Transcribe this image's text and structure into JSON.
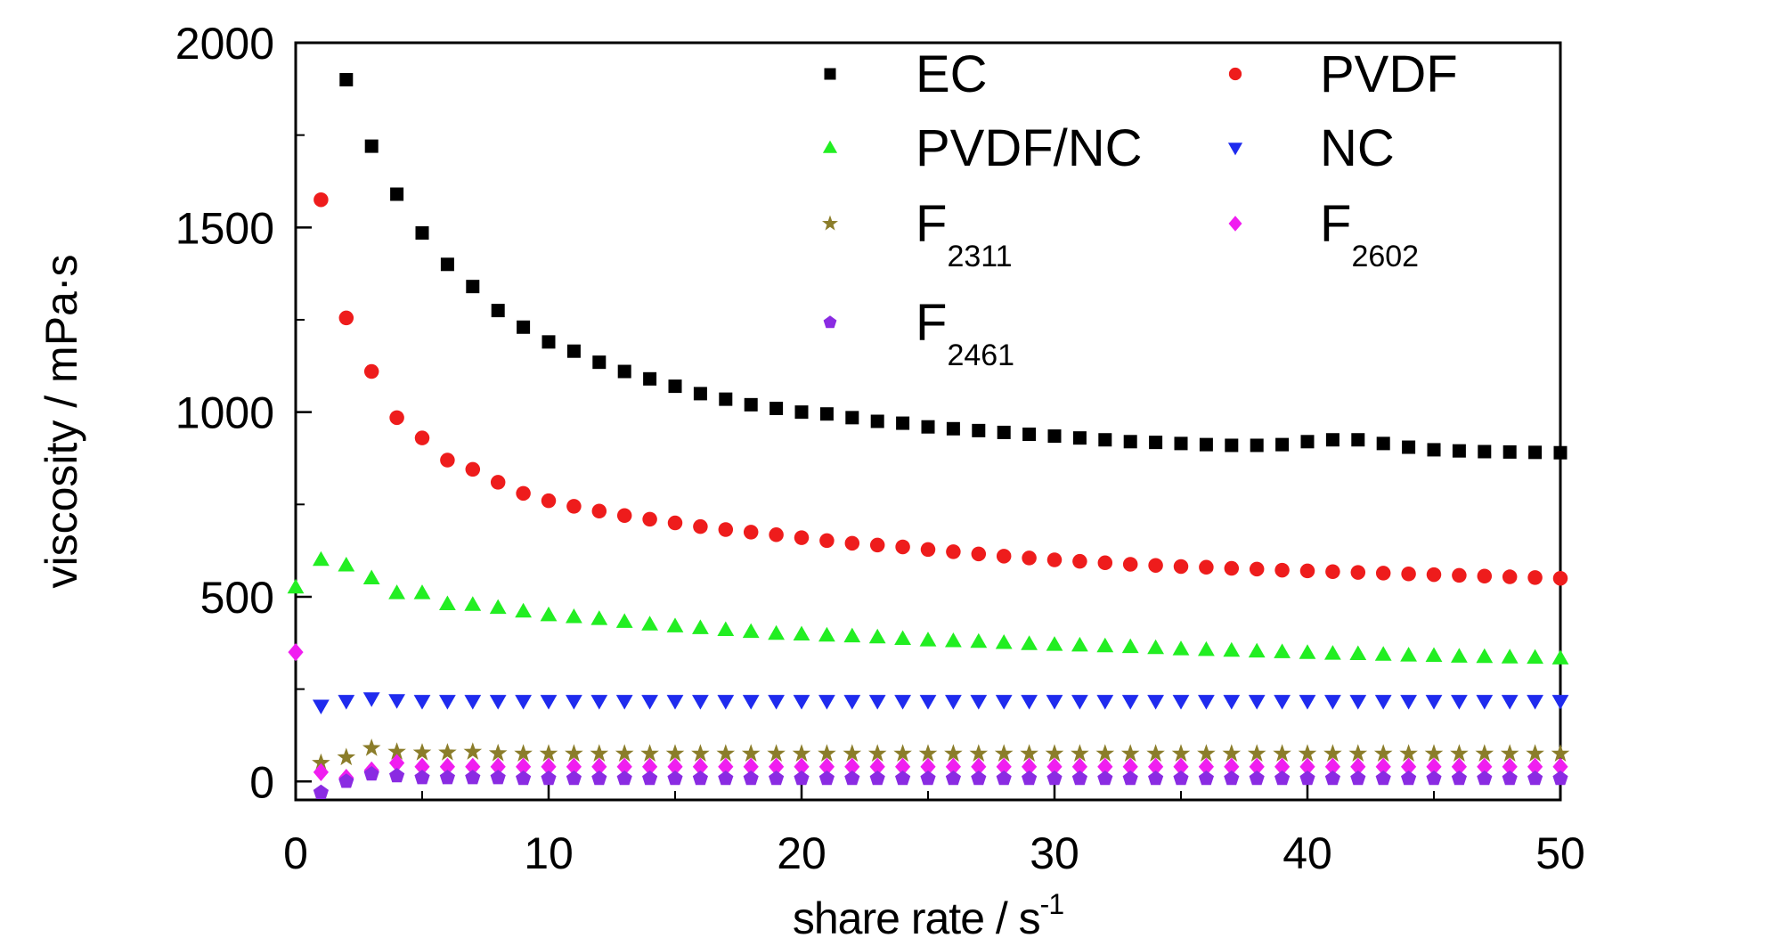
{
  "chart_data": {
    "type": "scatter",
    "title": "",
    "xlabel": "share rate / s",
    "xlabel_sup": "-1",
    "ylabel": "viscosity / mPa·s",
    "xlim": [
      0,
      50
    ],
    "ylim": [
      -50,
      2000
    ],
    "x_ticks": [
      0,
      10,
      20,
      30,
      40,
      50
    ],
    "y_ticks": [
      0,
      500,
      1000,
      1500,
      2000
    ],
    "x_tick_labels": [
      "0",
      "10",
      "20",
      "30",
      "40",
      "50"
    ],
    "y_tick_labels": [
      "0",
      "500",
      "1000",
      "1500",
      "2000"
    ],
    "grid": false,
    "legend_position": "top-right",
    "x": [
      0,
      1,
      2,
      3,
      4,
      5,
      6,
      7,
      8,
      9,
      10,
      11,
      12,
      13,
      14,
      15,
      16,
      17,
      18,
      19,
      20,
      21,
      22,
      23,
      24,
      25,
      26,
      27,
      28,
      29,
      30,
      31,
      32,
      33,
      34,
      35,
      36,
      37,
      38,
      39,
      40,
      41,
      42,
      43,
      44,
      45,
      46,
      47,
      48,
      49,
      50
    ],
    "series": [
      {
        "name": "EC",
        "sub": "",
        "marker": "square",
        "color": "#000000",
        "values": [
          null,
          null,
          1900,
          1720,
          1590,
          1485,
          1400,
          1340,
          1275,
          1230,
          1190,
          1165,
          1135,
          1110,
          1090,
          1070,
          1050,
          1035,
          1020,
          1010,
          1000,
          995,
          985,
          975,
          970,
          960,
          955,
          950,
          945,
          940,
          935,
          930,
          925,
          920,
          918,
          915,
          912,
          910,
          910,
          912,
          920,
          925,
          925,
          915,
          905,
          898,
          895,
          893,
          892,
          891,
          890
        ]
      },
      {
        "name": "PVDF",
        "sub": "",
        "marker": "circle",
        "color": "#ee1c1c",
        "values": [
          null,
          1575,
          1255,
          1110,
          985,
          930,
          870,
          845,
          810,
          780,
          760,
          745,
          732,
          720,
          710,
          700,
          690,
          682,
          675,
          668,
          660,
          652,
          645,
          640,
          635,
          628,
          622,
          616,
          610,
          605,
          600,
          596,
          592,
          588,
          585,
          582,
          580,
          577,
          575,
          572,
          570,
          568,
          566,
          564,
          562,
          560,
          558,
          556,
          554,
          552,
          550
        ]
      },
      {
        "name": "PVDF/NC",
        "sub": "",
        "marker": "triangle-up",
        "color": "#22ee22",
        "values": [
          525,
          600,
          585,
          550,
          510,
          510,
          480,
          478,
          470,
          460,
          450,
          445,
          440,
          432,
          425,
          420,
          415,
          410,
          405,
          400,
          398,
          395,
          393,
          390,
          386,
          382,
          380,
          378,
          375,
          372,
          370,
          368,
          366,
          364,
          361,
          358,
          356,
          354,
          352,
          350,
          348,
          346,
          345,
          343,
          341,
          340,
          338,
          337,
          336,
          335,
          333
        ]
      },
      {
        "name": "NC",
        "sub": "",
        "marker": "triangle-down",
        "color": "#1f2bee",
        "values": [
          null,
          205,
          218,
          225,
          220,
          218,
          218,
          218,
          218,
          218,
          218,
          218,
          218,
          218,
          218,
          218,
          218,
          218,
          218,
          218,
          218,
          218,
          218,
          218,
          218,
          218,
          218,
          218,
          218,
          218,
          218,
          218,
          218,
          218,
          218,
          218,
          218,
          218,
          218,
          218,
          218,
          218,
          218,
          218,
          218,
          218,
          218,
          218,
          218,
          218,
          218
        ]
      },
      {
        "name": "F",
        "sub": "2311",
        "marker": "star",
        "color": "#8b7d2a",
        "values": [
          null,
          50,
          65,
          90,
          80,
          78,
          78,
          80,
          76,
          75,
          75,
          75,
          75,
          75,
          75,
          75,
          75,
          75,
          75,
          75,
          75,
          75,
          75,
          75,
          75,
          75,
          75,
          75,
          75,
          75,
          75,
          75,
          75,
          75,
          75,
          75,
          75,
          75,
          75,
          75,
          75,
          75,
          75,
          75,
          75,
          75,
          75,
          75,
          75,
          75,
          75
        ]
      },
      {
        "name": "F",
        "sub": "2602",
        "marker": "diamond",
        "color": "#f01ef0",
        "values": [
          350,
          25,
          10,
          30,
          50,
          40,
          40,
          40,
          40,
          40,
          40,
          40,
          40,
          40,
          40,
          40,
          40,
          40,
          40,
          40,
          40,
          40,
          40,
          40,
          40,
          40,
          40,
          40,
          40,
          40,
          40,
          40,
          40,
          40,
          40,
          40,
          40,
          40,
          40,
          40,
          40,
          40,
          40,
          40,
          40,
          40,
          40,
          40,
          40,
          40,
          40
        ]
      },
      {
        "name": "F",
        "sub": "2461",
        "marker": "pentagon",
        "color": "#8a2be2",
        "values": [
          null,
          -30,
          0,
          20,
          15,
          10,
          10,
          10,
          10,
          8,
          8,
          8,
          8,
          8,
          8,
          8,
          8,
          8,
          8,
          8,
          8,
          8,
          8,
          8,
          8,
          8,
          8,
          8,
          8,
          8,
          8,
          8,
          8,
          8,
          8,
          8,
          8,
          8,
          8,
          8,
          8,
          8,
          8,
          8,
          8,
          8,
          8,
          8,
          8,
          8,
          8
        ]
      }
    ]
  }
}
